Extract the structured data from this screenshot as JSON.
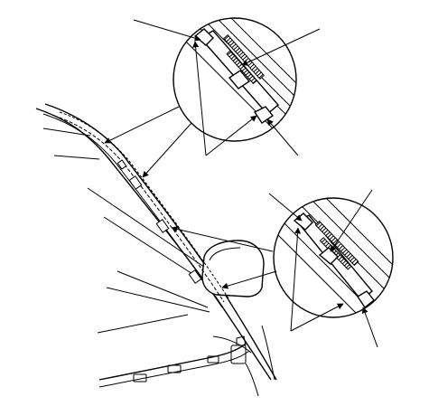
{
  "diagram": {
    "type": "technical-line-drawing",
    "callouts": 2
  }
}
